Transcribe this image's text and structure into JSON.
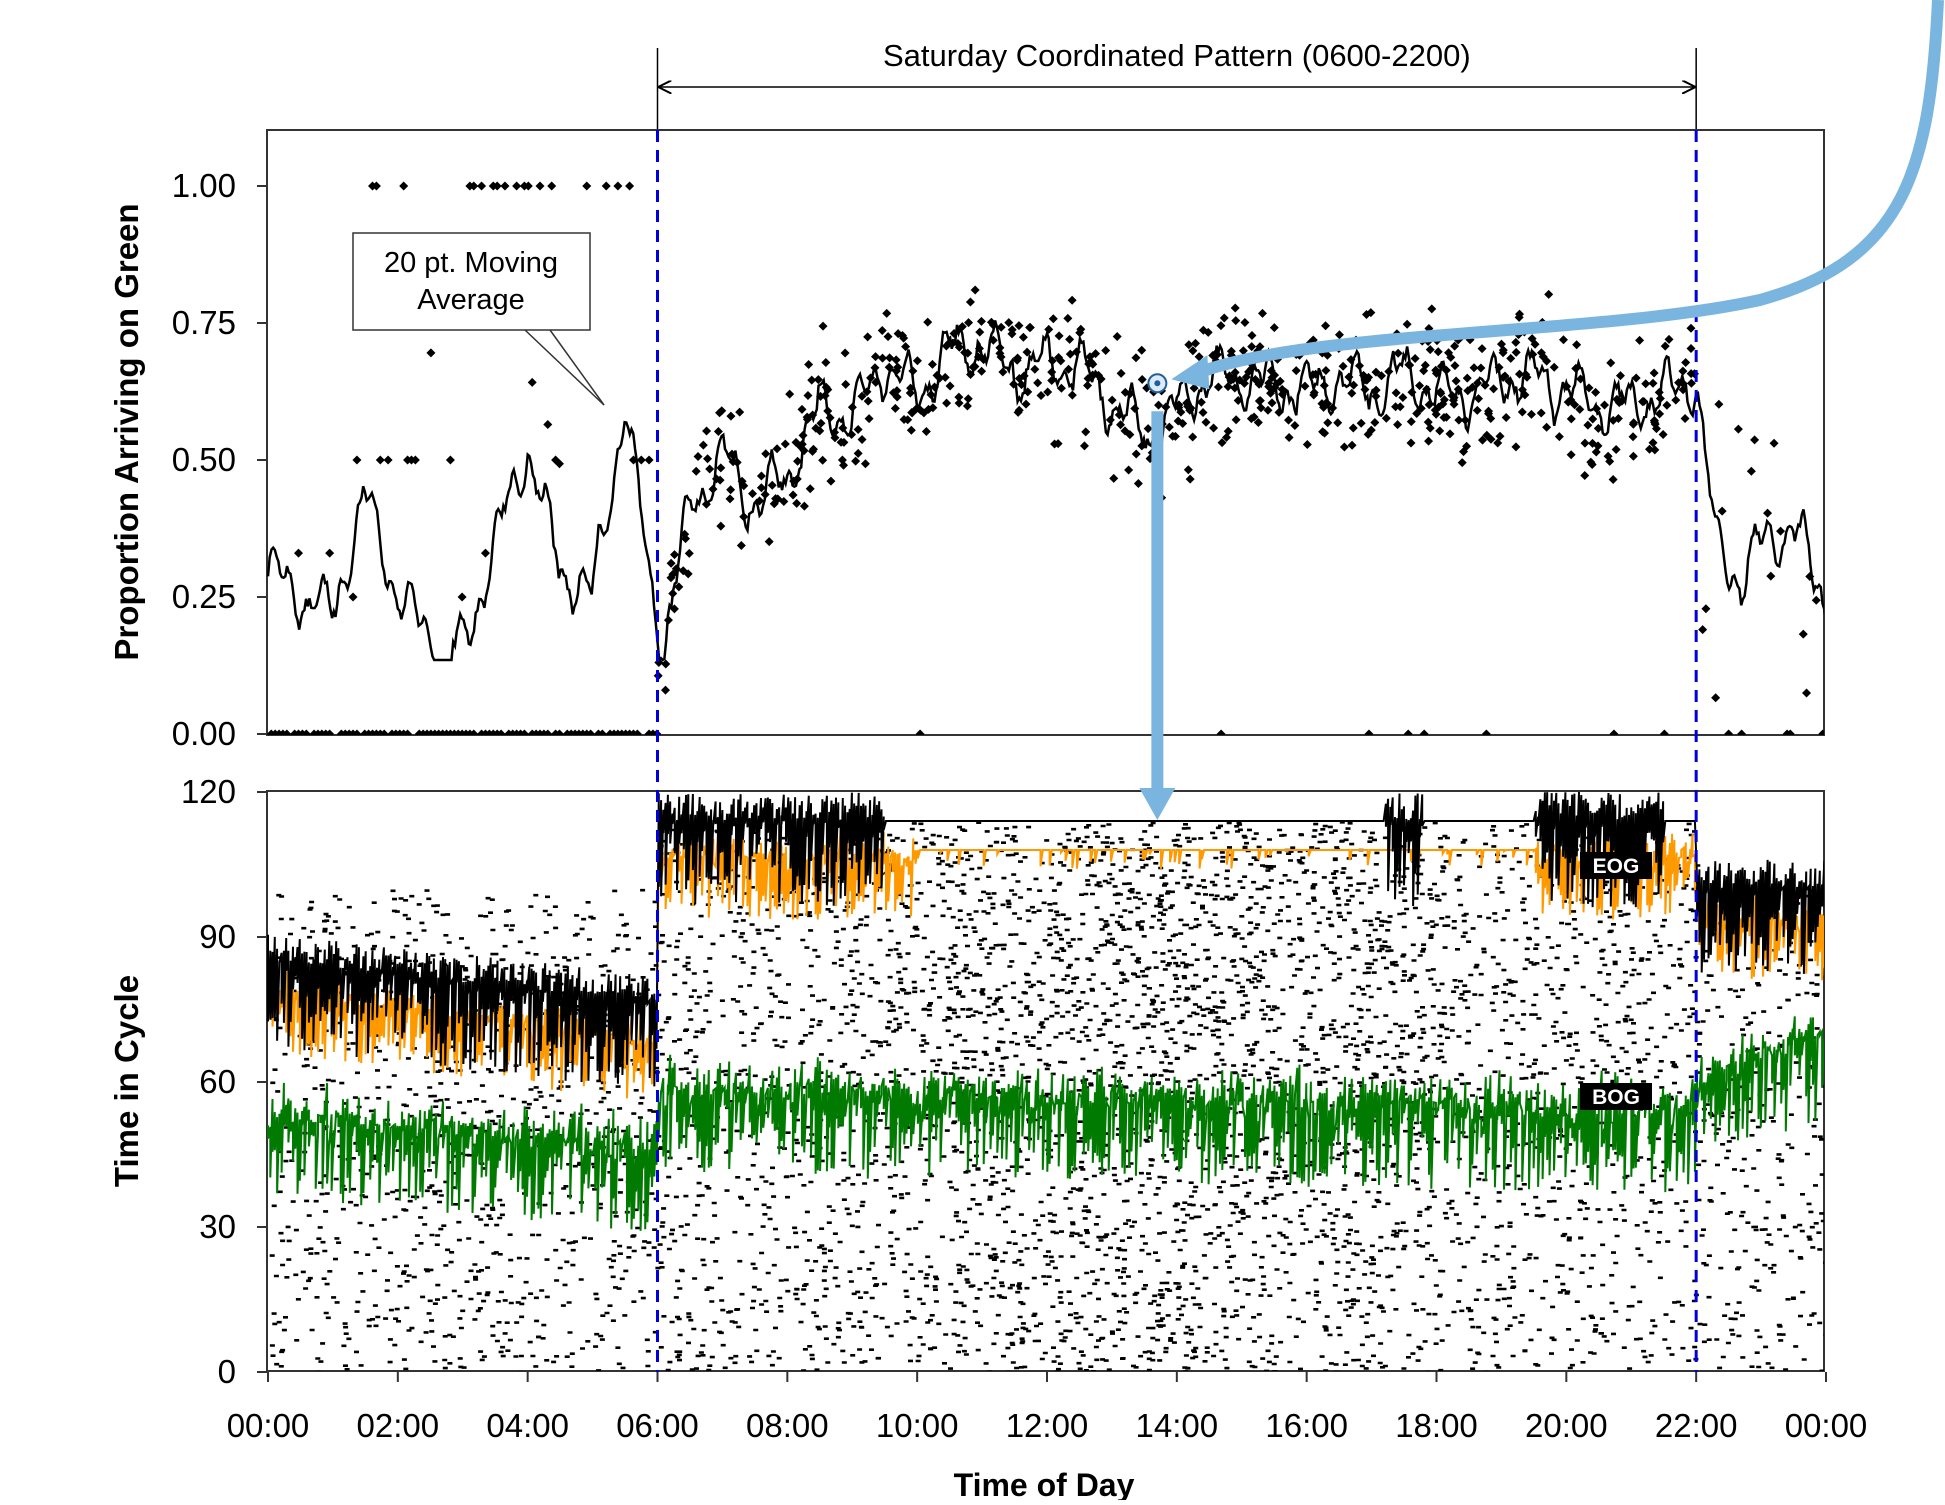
{
  "chart_data": [
    {
      "type": "scatter",
      "ylabel": "Proportion Arriving on Green",
      "xlim": [
        0,
        24
      ],
      "ylim": [
        0,
        1.05
      ],
      "y_ticks": [
        "0.00",
        "0.25",
        "0.50",
        "0.75",
        "1.00"
      ],
      "y_tick_values": [
        0,
        0.25,
        0.5,
        0.75,
        1.0
      ],
      "pattern_label": "Saturday Coordinated Pattern (0600-2200)",
      "pattern_range": [
        6,
        22
      ],
      "moving_average_label_line1": "20 pt. Moving",
      "moving_average_label_line2": "Average",
      "moving_average": {
        "x": [
          0.0,
          0.5,
          1.0,
          1.5,
          2.0,
          2.5,
          3.0,
          3.5,
          4.0,
          4.5,
          5.0,
          5.5,
          5.9,
          6.1,
          6.5,
          7.0,
          7.5,
          8.0,
          8.5,
          9.0,
          9.5,
          10.0,
          10.5,
          11.0,
          11.5,
          12.0,
          12.5,
          13.0,
          13.5,
          13.7,
          14.0,
          14.5,
          15.0,
          15.5,
          16.0,
          16.5,
          17.0,
          17.5,
          18.0,
          18.5,
          19.0,
          19.5,
          20.0,
          20.5,
          21.0,
          21.5,
          22.0,
          22.3,
          22.7,
          23.0,
          23.5,
          24.0
        ],
        "y": [
          0.3,
          0.25,
          0.22,
          0.44,
          0.25,
          0.18,
          0.15,
          0.35,
          0.52,
          0.3,
          0.25,
          0.6,
          0.27,
          0.16,
          0.42,
          0.5,
          0.42,
          0.47,
          0.6,
          0.58,
          0.68,
          0.62,
          0.7,
          0.71,
          0.66,
          0.68,
          0.67,
          0.6,
          0.55,
          0.54,
          0.6,
          0.65,
          0.65,
          0.64,
          0.63,
          0.65,
          0.62,
          0.66,
          0.62,
          0.62,
          0.65,
          0.65,
          0.63,
          0.6,
          0.6,
          0.62,
          0.65,
          0.35,
          0.28,
          0.35,
          0.38,
          0.25
        ]
      },
      "highlight_point": {
        "x": 13.7,
        "y": 0.64
      }
    },
    {
      "type": "scatter",
      "ylabel": "Time in Cycle",
      "xlabel": "Time of Day",
      "xlim": [
        0,
        24
      ],
      "ylim": [
        0,
        120
      ],
      "y_ticks": [
        "0",
        "30",
        "60",
        "90",
        "120"
      ],
      "y_tick_values": [
        0,
        30,
        60,
        90,
        120
      ],
      "x_ticks": [
        "00:00",
        "02:00",
        "04:00",
        "06:00",
        "08:00",
        "10:00",
        "12:00",
        "14:00",
        "16:00",
        "18:00",
        "20:00",
        "22:00",
        "00:00"
      ],
      "x_tick_values": [
        0,
        2,
        4,
        6,
        8,
        10,
        12,
        14,
        16,
        18,
        20,
        22,
        24
      ],
      "labels": {
        "eog": "EOG",
        "bog": "BOG"
      },
      "cycle_end": {
        "x": [
          0,
          6,
          6,
          22,
          22,
          24
        ],
        "y": [
          85,
          76,
          114,
          114,
          100,
          100
        ]
      },
      "end_of_green": {
        "x": [
          0,
          6,
          6,
          22,
          22,
          24
        ],
        "y": [
          80,
          70,
          108,
          108,
          95,
          95
        ]
      },
      "begin_of_green": {
        "x": [
          0,
          6,
          6,
          22,
          22,
          24
        ],
        "y": [
          55,
          48,
          60,
          56,
          62,
          72
        ]
      },
      "colors": {
        "eog": "#ff9900",
        "bog": "#007a00",
        "arrivals": "#000000",
        "pattern_lines": "#0000dd",
        "arrow": "#7ab5e0"
      }
    }
  ]
}
